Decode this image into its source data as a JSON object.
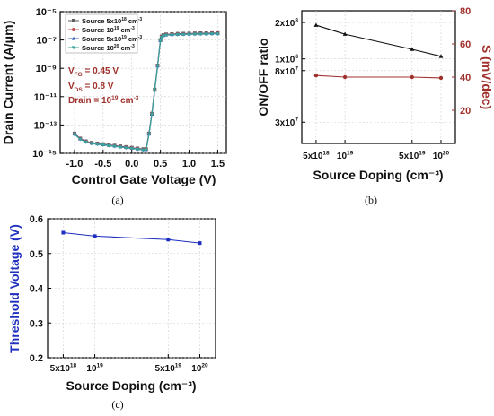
{
  "panels": {
    "a": {
      "label": "(a)"
    },
    "b": {
      "label": "(b)"
    },
    "c": {
      "label": "(c)"
    }
  },
  "chart_data": [
    {
      "id": "a",
      "type": "line",
      "xlabel": "Control Gate Voltage (V)",
      "ylabel": "Drain Current (A/μm)",
      "xlim": [
        -1.25,
        1.65
      ],
      "ylim_log10": [
        -15,
        -5
      ],
      "yscale": "log",
      "grid": true,
      "xticks": [
        -1.0,
        -0.5,
        0.0,
        0.5,
        1.0,
        1.5
      ],
      "xtick_labels": [
        "-1.0",
        "-0.5",
        "0.0",
        "0.5",
        "1.0",
        "1.5"
      ],
      "yticks_log10": [
        -15,
        -13,
        -11,
        -9,
        -7,
        -5
      ],
      "ytick_labels": [
        "10⁻¹⁵",
        "10⁻¹³",
        "10⁻¹¹",
        "10⁻⁹",
        "10⁻⁷",
        "10⁻⁵"
      ],
      "legend_position": "top-left",
      "annotations": [
        "V_FG = 0.45 V",
        "V_DS = 0.8 V",
        "Drain = 10¹⁹ cm⁻³"
      ],
      "annotation_parts": {
        "vfg": {
          "main": "V",
          "sub": "FG",
          "rest": " = 0.45 V"
        },
        "vds": {
          "main": "V",
          "sub": "DS",
          "rest": " = 0.8 V"
        },
        "drain": {
          "main": "Drain = 10",
          "sup": "19",
          "rest": " cm",
          "sup2": "-3"
        }
      },
      "x": [
        -1.0,
        -0.9,
        -0.8,
        -0.7,
        -0.6,
        -0.5,
        -0.4,
        -0.3,
        -0.2,
        -0.1,
        0.0,
        0.1,
        0.2,
        0.25,
        0.3,
        0.35,
        0.4,
        0.45,
        0.5,
        0.52,
        0.55,
        0.6,
        0.7,
        0.8,
        0.9,
        1.0,
        1.1,
        1.2,
        1.3,
        1.4,
        1.5
      ],
      "series": [
        {
          "name": "Source 5x10¹⁸ cm⁻³",
          "legend": {
            "pre": "Source 5x10",
            "sup": "18",
            "post": " cm",
            "sup2": "-3"
          },
          "color": "#5b5b5b",
          "marker": "square",
          "values_log10": [
            -13.6,
            -13.95,
            -14.15,
            -14.25,
            -14.3,
            -14.35,
            -14.4,
            -14.45,
            -14.5,
            -14.55,
            -14.6,
            -14.65,
            -14.7,
            -14.7,
            -13.6,
            -12.2,
            -10.5,
            -8.8,
            -7.0,
            -6.75,
            -6.65,
            -6.6,
            -6.58,
            -6.56,
            -6.55,
            -6.54,
            -6.53,
            -6.52,
            -6.52,
            -6.51,
            -6.51
          ]
        },
        {
          "name": "Source 10¹⁹ cm⁻³",
          "legend": {
            "pre": "Source 10",
            "sup": "19",
            "post": " cm",
            "sup2": "-3"
          },
          "color": "#c0504d",
          "marker": "circle",
          "values_log10": [
            -13.62,
            -13.97,
            -14.17,
            -14.27,
            -14.32,
            -14.37,
            -14.42,
            -14.47,
            -14.52,
            -14.57,
            -14.62,
            -14.67,
            -14.72,
            -14.72,
            -13.62,
            -12.22,
            -10.52,
            -8.82,
            -7.02,
            -6.77,
            -6.67,
            -6.62,
            -6.6,
            -6.58,
            -6.57,
            -6.56,
            -6.55,
            -6.54,
            -6.54,
            -6.53,
            -6.53
          ]
        },
        {
          "name": "Source 5x10¹⁹ cm⁻³",
          "legend": {
            "pre": "Source 5x10",
            "sup": "19",
            "post": " cm",
            "sup2": "-3"
          },
          "color": "#3f5fbf",
          "marker": "triangle",
          "values_log10": [
            -13.64,
            -13.99,
            -14.19,
            -14.29,
            -14.34,
            -14.39,
            -14.44,
            -14.49,
            -14.54,
            -14.59,
            -14.64,
            -14.69,
            -14.74,
            -14.74,
            -13.64,
            -12.24,
            -10.54,
            -8.84,
            -7.04,
            -6.79,
            -6.69,
            -6.64,
            -6.62,
            -6.6,
            -6.59,
            -6.58,
            -6.57,
            -6.56,
            -6.56,
            -6.55,
            -6.55
          ]
        },
        {
          "name": "Source 10²⁰ cm⁻³",
          "legend": {
            "pre": "Source 10",
            "sup": "20",
            "post": " cm",
            "sup2": "-3"
          },
          "color": "#3aa39a",
          "marker": "triangle-down",
          "values_log10": [
            -13.66,
            -14.01,
            -14.21,
            -14.31,
            -14.36,
            -14.41,
            -14.46,
            -14.51,
            -14.56,
            -14.61,
            -14.66,
            -14.71,
            -14.76,
            -14.76,
            -13.66,
            -12.26,
            -10.56,
            -8.86,
            -7.06,
            -6.81,
            -6.71,
            -6.66,
            -6.64,
            -6.62,
            -6.61,
            -6.6,
            -6.59,
            -6.58,
            -6.58,
            -6.57,
            -6.57
          ]
        }
      ]
    },
    {
      "id": "b",
      "type": "line",
      "xlabel": "Source Doping (cm⁻³)",
      "ylabel": "ON/OFF ratio",
      "y2label": "S (mV/dec)",
      "categories": [
        "5x10¹⁸",
        "10¹⁹",
        "5x10¹⁹",
        "10²⁰"
      ],
      "category_parts": [
        {
          "pre": "5x10",
          "sup": "18"
        },
        {
          "pre": "10",
          "sup": "19"
        },
        {
          "pre": "5x10",
          "sup": "19"
        },
        {
          "pre": "10",
          "sup": "20"
        }
      ],
      "x_log10": [
        18.699,
        19.0,
        19.699,
        20.0
      ],
      "xlim_log10": [
        18.55,
        20.15
      ],
      "grid": true,
      "ylim": [
        20000000,
        250000000
      ],
      "yticks": [
        30000000,
        80000000,
        100000000,
        200000000
      ],
      "ytick_parts": [
        {
          "pre": "3x10",
          "sup": "7"
        },
        {
          "pre": "8x10",
          "sup": "7"
        },
        {
          "pre": "1x10",
          "sup": "8"
        },
        {
          "pre": "2x10",
          "sup": "8"
        }
      ],
      "y2lim": [
        0,
        80
      ],
      "y2ticks": [
        20,
        40,
        60,
        80
      ],
      "series": [
        {
          "axis": "left",
          "color": "#111111",
          "marker": "triangle",
          "values": [
            190000000,
            160000000,
            120000000,
            105000000
          ]
        },
        {
          "axis": "right",
          "color": "#a0302c",
          "marker": "circle",
          "values": [
            41,
            40,
            40,
            39.5
          ]
        }
      ]
    },
    {
      "id": "c",
      "type": "line",
      "xlabel": "Source Doping (cm⁻³)",
      "ylabel": "Threshold Voltage (V)",
      "categories": [
        "5x10¹⁸",
        "10¹⁹",
        "5x10¹⁹",
        "10²⁰"
      ],
      "category_parts": [
        {
          "pre": "5x10",
          "sup": "18"
        },
        {
          "pre": "10",
          "sup": "19"
        },
        {
          "pre": "5x10",
          "sup": "19"
        },
        {
          "pre": "10",
          "sup": "20"
        }
      ],
      "x_log10": [
        18.699,
        19.0,
        19.699,
        20.0
      ],
      "xlim_log10": [
        18.55,
        20.15
      ],
      "ylim": [
        0.2,
        0.6
      ],
      "yticks": [
        0.2,
        0.3,
        0.4,
        0.5,
        0.6
      ],
      "grid": true,
      "series": [
        {
          "color": "#1f2fbf",
          "marker": "square",
          "values": [
            0.56,
            0.55,
            0.54,
            0.53
          ]
        }
      ]
    }
  ]
}
